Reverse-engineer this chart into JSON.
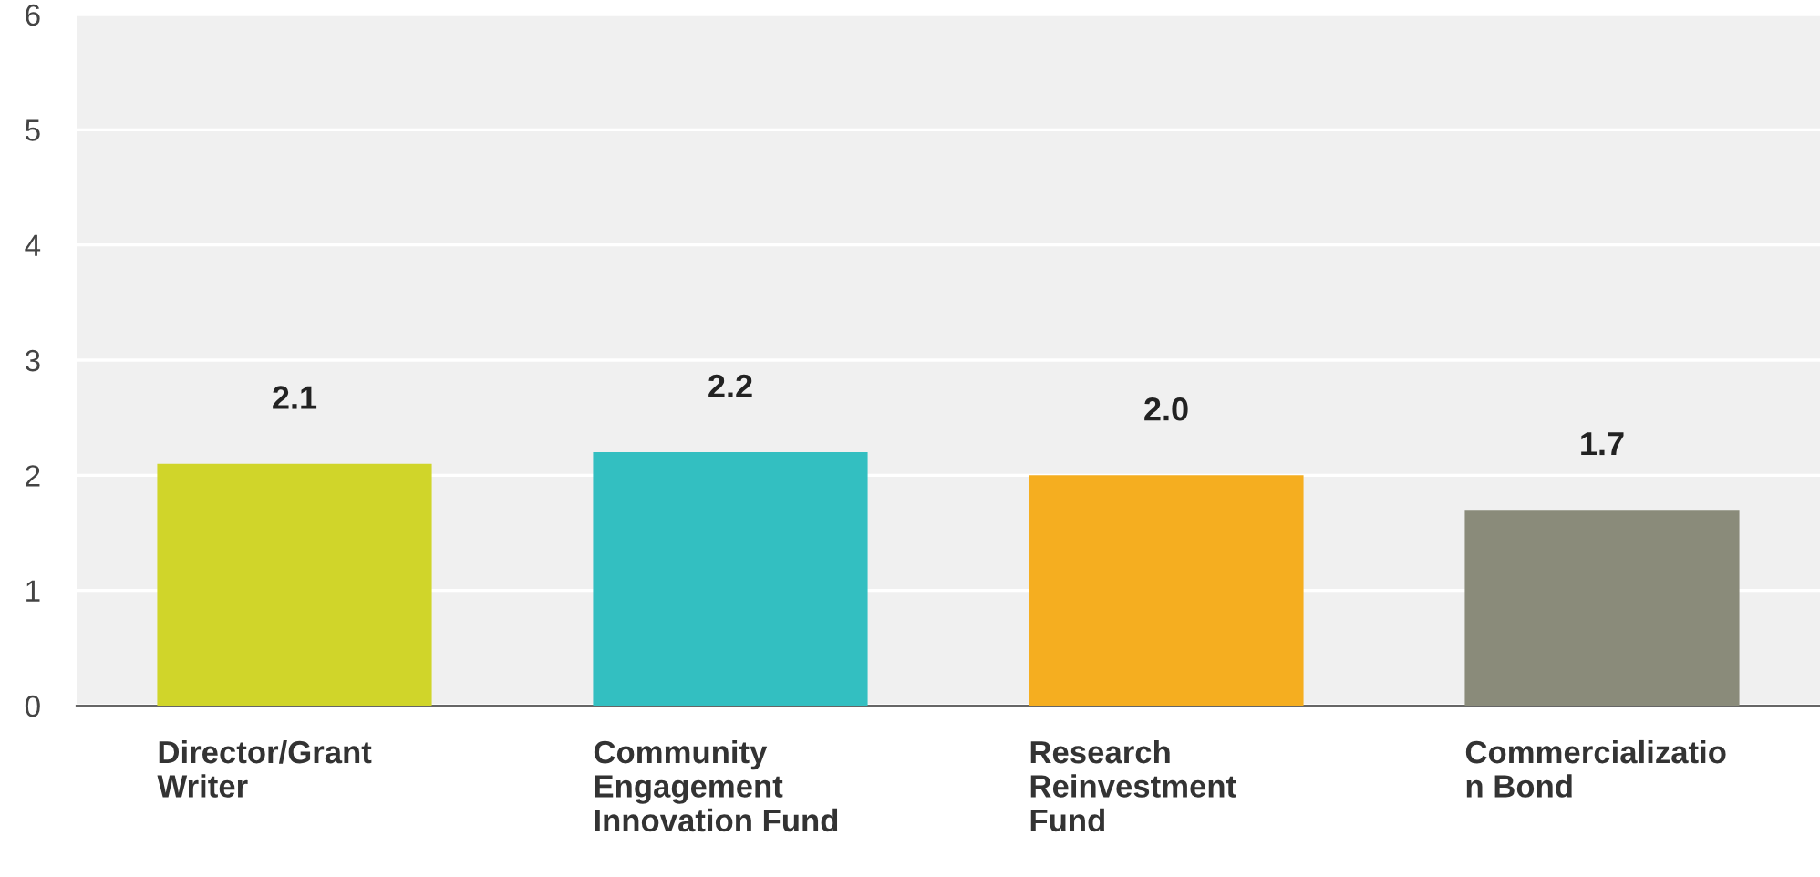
{
  "chart_data": {
    "type": "bar",
    "categories": [
      "Director/Grant\nWriter",
      "Community\nEngagement\nInnovation Fund",
      "Research\nReinvestment\nFund",
      "Commercializatio\nn Bond"
    ],
    "values": [
      2.1,
      2.2,
      2.0,
      1.7
    ],
    "colors": [
      "#d0d52a",
      "#33bfc1",
      "#f5ae20",
      "#8a8b7a"
    ],
    "ylim": [
      0,
      6
    ],
    "yticks": [
      0,
      1,
      2,
      3,
      4,
      5,
      6
    ],
    "value_labels": [
      "2.1",
      "2.2",
      "2.0",
      "1.7"
    ],
    "grid": "y"
  }
}
